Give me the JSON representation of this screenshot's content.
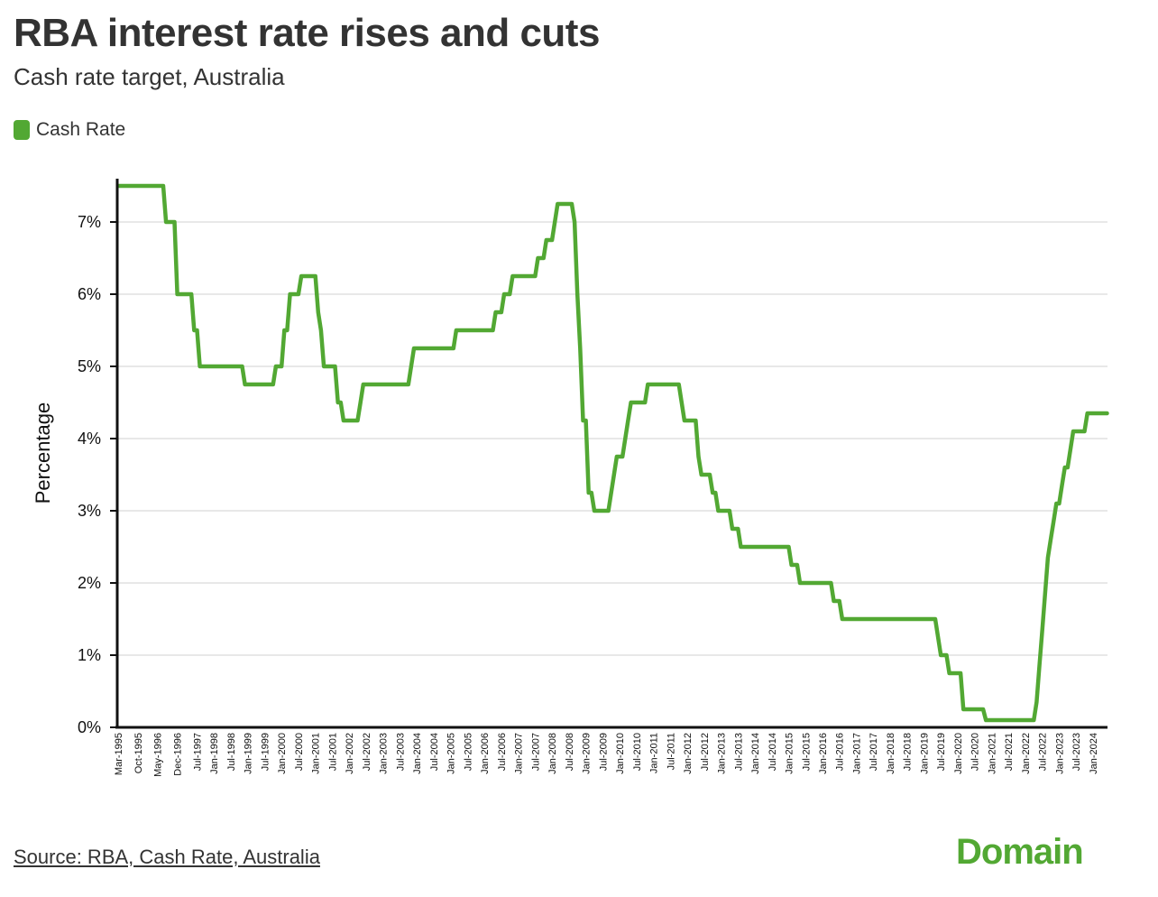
{
  "header": {
    "title": "RBA interest rate rises and cuts",
    "subtitle": "Cash rate target, Australia"
  },
  "legend": {
    "label": "Cash Rate",
    "color": "#52a833"
  },
  "footer": {
    "source": "Source: RBA, Cash Rate, Australia",
    "brand": "Domain",
    "brand_color": "#52a833"
  },
  "chart_data": {
    "type": "line",
    "title": "RBA interest rate rises and cuts",
    "subtitle": "Cash rate target, Australia",
    "xlabel": "",
    "ylabel": "Percentage",
    "ylim": [
      0,
      7.6
    ],
    "yticks": [
      0,
      1,
      2,
      3,
      4,
      5,
      6,
      7
    ],
    "ytick_labels": [
      "0%",
      "1%",
      "2%",
      "3%",
      "4%",
      "5%",
      "6%",
      "7%"
    ],
    "grid": "horizontal",
    "legend_position": "top-left",
    "x_range": [
      "Mar-1995",
      "Jun-2024"
    ],
    "xtick_labels": [
      "Mar-1995",
      "Oct-1995",
      "May-1996",
      "Dec-1996",
      "Jul-1997",
      "Jan-1998",
      "Jul-1998",
      "Jan-1999",
      "Jul-1999",
      "Jan-2000",
      "Jul-2000",
      "Jan-2001",
      "Jul-2001",
      "Jan-2002",
      "Jul-2002",
      "Jan-2003",
      "Jul-2003",
      "Jan-2004",
      "Jul-2004",
      "Jan-2005",
      "Jul-2005",
      "Jan-2006",
      "Jul-2006",
      "Jan-2007",
      "Jul-2007",
      "Jan-2008",
      "Jul-2008",
      "Jan-2009",
      "Jul-2009",
      "Jan-2010",
      "Jul-2010",
      "Jan-2011",
      "Jul-2011",
      "Jan-2012",
      "Jul-2012",
      "Jan-2013",
      "Jul-2013",
      "Jan-2014",
      "Jul-2014",
      "Jan-2015",
      "Jul-2015",
      "Jan-2016",
      "Jul-2016",
      "Jan-2017",
      "Jul-2017",
      "Jan-2018",
      "Jul-2018",
      "Jan-2019",
      "Jul-2019",
      "Jan-2020",
      "Jul-2020",
      "Jan-2021",
      "Jul-2021",
      "Jan-2022",
      "Jul-2022",
      "Jan-2023",
      "Jul-2023",
      "Jan-2024"
    ],
    "series": [
      {
        "name": "Cash Rate",
        "color": "#52a833",
        "frequency": "monthly",
        "changes": [
          {
            "month": "Mar-1995",
            "value": 7.5
          },
          {
            "month": "Aug-1996",
            "value": 7.0
          },
          {
            "month": "Dec-1996",
            "value": 6.0
          },
          {
            "month": "Jun-1997",
            "value": 5.5
          },
          {
            "month": "Aug-1997",
            "value": 5.0
          },
          {
            "month": "Dec-1998",
            "value": 4.75
          },
          {
            "month": "Nov-1999",
            "value": 5.0
          },
          {
            "month": "Feb-2000",
            "value": 5.5
          },
          {
            "month": "Apr-2000",
            "value": 6.0
          },
          {
            "month": "Aug-2000",
            "value": 6.25
          },
          {
            "month": "Feb-2001",
            "value": 5.75
          },
          {
            "month": "Mar-2001",
            "value": 5.5
          },
          {
            "month": "Apr-2001",
            "value": 5.0
          },
          {
            "month": "Sep-2001",
            "value": 4.5
          },
          {
            "month": "Oct-2001",
            "value": 4.5
          },
          {
            "month": "Nov-2001",
            "value": 4.25
          },
          {
            "month": "May-2002",
            "value": 4.5
          },
          {
            "month": "Jun-2002",
            "value": 4.75
          },
          {
            "month": "Nov-2003",
            "value": 5.0
          },
          {
            "month": "Dec-2003",
            "value": 5.25
          },
          {
            "month": "Mar-2005",
            "value": 5.5
          },
          {
            "month": "May-2006",
            "value": 5.75
          },
          {
            "month": "Aug-2006",
            "value": 6.0
          },
          {
            "month": "Nov-2006",
            "value": 6.25
          },
          {
            "month": "Aug-2007",
            "value": 6.5
          },
          {
            "month": "Nov-2007",
            "value": 6.75
          },
          {
            "month": "Feb-2008",
            "value": 7.0
          },
          {
            "month": "Mar-2008",
            "value": 7.25
          },
          {
            "month": "Sep-2008",
            "value": 7.0
          },
          {
            "month": "Oct-2008",
            "value": 6.0
          },
          {
            "month": "Nov-2008",
            "value": 5.25
          },
          {
            "month": "Dec-2008",
            "value": 4.25
          },
          {
            "month": "Feb-2009",
            "value": 3.25
          },
          {
            "month": "Apr-2009",
            "value": 3.0
          },
          {
            "month": "Oct-2009",
            "value": 3.25
          },
          {
            "month": "Nov-2009",
            "value": 3.5
          },
          {
            "month": "Dec-2009",
            "value": 3.75
          },
          {
            "month": "Mar-2010",
            "value": 4.0
          },
          {
            "month": "Apr-2010",
            "value": 4.25
          },
          {
            "month": "May-2010",
            "value": 4.5
          },
          {
            "month": "Nov-2010",
            "value": 4.75
          },
          {
            "month": "Nov-2011",
            "value": 4.5
          },
          {
            "month": "Dec-2011",
            "value": 4.25
          },
          {
            "month": "May-2012",
            "value": 3.75
          },
          {
            "month": "Jun-2012",
            "value": 3.5
          },
          {
            "month": "Oct-2012",
            "value": 3.25
          },
          {
            "month": "Dec-2012",
            "value": 3.0
          },
          {
            "month": "May-2013",
            "value": 2.75
          },
          {
            "month": "Aug-2013",
            "value": 2.5
          },
          {
            "month": "Feb-2015",
            "value": 2.25
          },
          {
            "month": "May-2015",
            "value": 2.0
          },
          {
            "month": "May-2016",
            "value": 1.75
          },
          {
            "month": "Aug-2016",
            "value": 1.5
          },
          {
            "month": "Jun-2019",
            "value": 1.25
          },
          {
            "month": "Jul-2019",
            "value": 1.0
          },
          {
            "month": "Oct-2019",
            "value": 0.75
          },
          {
            "month": "Mar-2020",
            "value": 0.25
          },
          {
            "month": "Nov-2020",
            "value": 0.1
          },
          {
            "month": "May-2022",
            "value": 0.35
          },
          {
            "month": "Jun-2022",
            "value": 0.85
          },
          {
            "month": "Jul-2022",
            "value": 1.35
          },
          {
            "month": "Aug-2022",
            "value": 1.85
          },
          {
            "month": "Sep-2022",
            "value": 2.35
          },
          {
            "month": "Oct-2022",
            "value": 2.6
          },
          {
            "month": "Nov-2022",
            "value": 2.85
          },
          {
            "month": "Dec-2022",
            "value": 3.1
          },
          {
            "month": "Feb-2023",
            "value": 3.35
          },
          {
            "month": "Mar-2023",
            "value": 3.6
          },
          {
            "month": "May-2023",
            "value": 3.85
          },
          {
            "month": "Jun-2023",
            "value": 4.1
          },
          {
            "month": "Nov-2023",
            "value": 4.35
          }
        ],
        "end_month": "Jun-2024"
      }
    ]
  }
}
